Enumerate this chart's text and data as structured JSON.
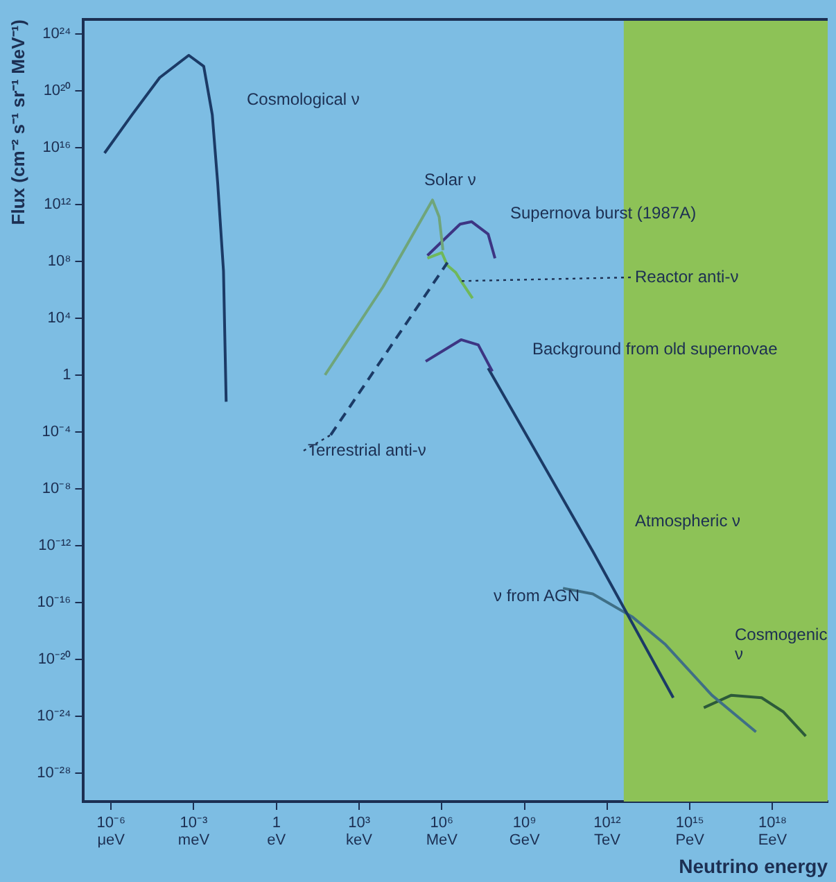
{
  "chart_data": {
    "type": "line",
    "xlabel": "Neutrino energy",
    "ylabel": "Flux (cm⁻² s⁻¹ sr⁻¹ MeV⁻¹)",
    "log": "xy",
    "grid": false,
    "legend": false,
    "marker": "none",
    "xlim": [
      1e-07,
      1e+20
    ],
    "ylim": [
      1e-30,
      1e+25
    ],
    "xticks": [
      {
        "value": 1e-06,
        "label": "10⁻⁶"
      },
      {
        "value": 0.001,
        "label": "10⁻³"
      },
      {
        "value": 1,
        "label": "1"
      },
      {
        "value": 1000.0,
        "label": "10³"
      },
      {
        "value": 1000000.0,
        "label": "10⁶"
      },
      {
        "value": 1000000000.0,
        "label": "10⁹"
      },
      {
        "value": 1000000000000.0,
        "label": "10¹²"
      },
      {
        "value": 1000000000000000.0,
        "label": "10¹⁵"
      },
      {
        "value": 1e+18,
        "label": "10¹⁸"
      }
    ],
    "annotations": [
      "μeV",
      "meV",
      "eV",
      "keV",
      "MeV",
      "GeV",
      "TeV",
      "PeV",
      "EeV"
    ],
    "yticks": [
      {
        "value": 1e+24,
        "label": "10²⁴"
      },
      {
        "value": 1e+20,
        "label": "10²⁰"
      },
      {
        "value": 1e+16,
        "label": "10¹⁶"
      },
      {
        "value": 1000000000000.0,
        "label": "10¹²"
      },
      {
        "value": 100000000.0,
        "label": "10⁸"
      },
      {
        "value": 10000.0,
        "label": "10⁴"
      },
      {
        "value": 1,
        "label": "1"
      },
      {
        "value": 0.0001,
        "label": "10⁻⁴"
      },
      {
        "value": 1e-08,
        "label": "10⁻⁸"
      },
      {
        "value": 1e-12,
        "label": "10⁻¹²"
      },
      {
        "value": 1e-16,
        "label": "10⁻¹⁶"
      },
      {
        "value": 1e-20,
        "label": "10⁻²⁰"
      },
      {
        "value": 1e-24,
        "label": "10⁻²⁴"
      },
      {
        "value": 1e-28,
        "label": "10⁻²⁸"
      }
    ],
    "bands": [
      {
        "axis": "x",
        "from": 4000000000000.0,
        "to": 1e+20,
        "color": "#8dc257"
      }
    ],
    "series": [
      {
        "name": "Cosmological ν",
        "color": "#1b3a66",
        "x": [
          5.8e-07,
          5.8e-06,
          5.8e-05,
          0.00066,
          0.0023,
          0.0047,
          0.0074,
          0.012,
          0.015
        ],
        "values": [
          4000000000000000.0,
          2e+18,
          8e+20,
          3e+22,
          5e+21,
          2e+18,
          30000000000000.0,
          20000000.0,
          0.013
        ]
      },
      {
        "name": "Solar ν",
        "color": "#6fa57a",
        "x": [
          58,
          7400.0,
          460000.0,
          800000.0,
          1100000.0
        ],
        "values": [
          1,
          1600000.0,
          2000000000000.0,
          130000000000.0,
          600000000.0
        ]
      },
      {
        "name": "Terrestrial anti-ν",
        "color": "#1b3a66",
        "line_style": "dashed",
        "x": [
          93,
          1600000.0
        ],
        "values": [
          6e-05,
          80000000.0
        ]
      },
      {
        "name": "Reactor anti-ν",
        "color": "#6fb85a",
        "x": [
          300000.0,
          1000000.0,
          1600000.0,
          3200000.0,
          5000000.0,
          13000000.0
        ],
        "values": [
          160000000.0,
          400000000.0,
          50000000.0,
          16000000.0,
          4000000.0,
          250000.0
        ]
      },
      {
        "name": "Supernova burst (1987A)",
        "color": "#3d3583",
        "x": [
          300000.0,
          4600000.0,
          12000000.0,
          48000000.0,
          85000000.0
        ],
        "values": [
          250000000.0,
          40000000000.0,
          60000000000.0,
          8000000000.0,
          160000000.0
        ]
      },
      {
        "name": "Background from old supernovae",
        "color": "#3d3583",
        "x": [
          260000.0,
          5000000.0,
          21000000.0,
          68000000.0
        ],
        "values": [
          9,
          300,
          130,
          1.8
        ]
      },
      {
        "name": "Atmospheric ν",
        "color": "#1b3a66",
        "x": [
          48000000.0,
          300000000000.0,
          250000000000000.0
        ],
        "values": [
          3,
          4e-13,
          2e-23
        ]
      },
      {
        "name": "ν from AGN",
        "color": "#3f6f86",
        "x": [
          25000000000.0,
          300000000000.0,
          8000000000000.0,
          130000000000000.0,
          6300000000000000.0,
          2.5e+17
        ],
        "values": [
          1e-15,
          4e-16,
          1e-17,
          1.1e-19,
          3e-23,
          8e-26
        ]
      },
      {
        "name": "Cosmogenic ν",
        "color": "#2c5a3a",
        "x": [
          3200000000000000.0,
          3.2e+16,
          4e+17,
          2.5e+18,
          1.6e+19
        ],
        "values": [
          4e-24,
          3e-23,
          2e-23,
          2e-24,
          4e-26
        ]
      }
    ]
  }
}
